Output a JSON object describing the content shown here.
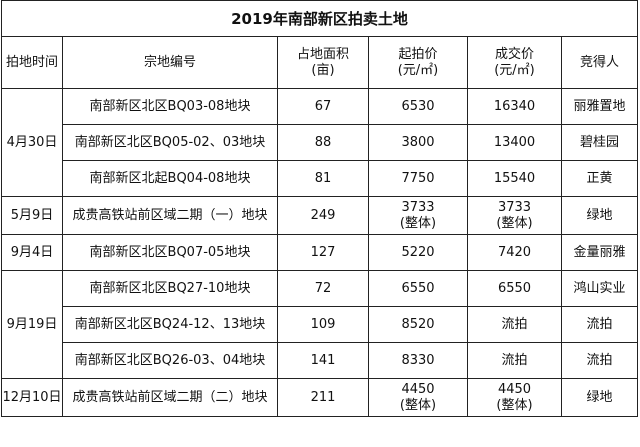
{
  "title": "2019年南部新区拍卖土地",
  "headers": [
    [
      "拍地时间"
    ],
    [
      "宗地编号"
    ],
    [
      "占地面积",
      "(亩)"
    ],
    [
      "起拍价",
      "(元/㎡)"
    ],
    [
      "成交价",
      "(元/㎡)"
    ],
    [
      "竞得人"
    ]
  ],
  "dates": [
    "4月30日",
    "5月9日",
    "9月4日",
    "9月19日",
    "12月10日"
  ],
  "rows": [
    {
      "parcel": "南部新区北区BQ03-08地块",
      "area": "67",
      "start": [
        "6530"
      ],
      "deal": [
        "16340"
      ],
      "winner": "丽雅置地"
    },
    {
      "parcel": "南部新区北区BQ05-02、03地块",
      "area": "88",
      "start": [
        "3800"
      ],
      "deal": [
        "13400"
      ],
      "winner": "碧桂园"
    },
    {
      "parcel": "南部新区北起BQ04-08地块",
      "area": "81",
      "start": [
        "7750"
      ],
      "deal": [
        "15540"
      ],
      "winner": "正黄"
    },
    {
      "parcel": "成贵高铁站前区域二期（一）地块",
      "area": "249",
      "start": [
        "3733",
        "(整体)"
      ],
      "deal": [
        "3733",
        "(整体)"
      ],
      "winner": "绿地"
    },
    {
      "parcel": "南部新区北区BQ07-05地块",
      "area": "127",
      "start": [
        "5220"
      ],
      "deal": [
        "7420"
      ],
      "winner": "金量丽雅"
    },
    {
      "parcel": "南部新区北区BQ27-10地块",
      "area": "72",
      "start": [
        "6550"
      ],
      "deal": [
        "6550"
      ],
      "winner": "鸿山实业"
    },
    {
      "parcel": "南部新区北区BQ24-12、13地块",
      "area": "109",
      "start": [
        "8520"
      ],
      "deal": [
        "流拍"
      ],
      "winner": "流拍"
    },
    {
      "parcel": "南部新区北区BQ26-03、04地块",
      "area": "141",
      "start": [
        "8330"
      ],
      "deal": [
        "流拍"
      ],
      "winner": "流拍"
    },
    {
      "parcel": "成贵高铁站前区域二期（二）地块",
      "area": "211",
      "start": [
        "4450",
        "(整体)"
      ],
      "deal": [
        "4450",
        "(整体)"
      ],
      "winner": "绿地"
    }
  ]
}
